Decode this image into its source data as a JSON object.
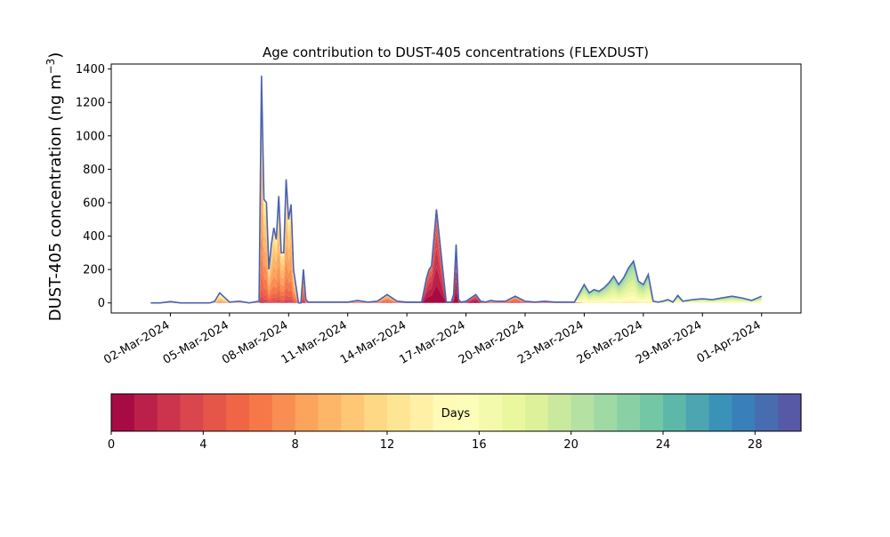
{
  "chart_data": {
    "type": "area",
    "title": "Age contribution to DUST-405 concentrations (FLEXDUST)",
    "ylabel_main": "DUST-405 concentration (ng m",
    "ylabel_sup": "−3",
    "ylabel_tail": ")",
    "xlabel": "",
    "ylim": [
      -60,
      1430
    ],
    "yticks": [
      0,
      200,
      400,
      600,
      800,
      1000,
      1200,
      1400
    ],
    "x_date_range": [
      "2024-02-28",
      "2024-04-03"
    ],
    "xticks": [
      "02-Mar-2024",
      "05-Mar-2024",
      "08-Mar-2024",
      "11-Mar-2024",
      "14-Mar-2024",
      "17-Mar-2024",
      "20-Mar-2024",
      "23-Mar-2024",
      "26-Mar-2024",
      "29-Mar-2024",
      "01-Apr-2024"
    ],
    "series_layers": 30,
    "colormap": "Spectral",
    "total": {
      "t": [
        "2024-03-01T00",
        "2024-03-01T12",
        "2024-03-02T00",
        "2024-03-02T12",
        "2024-03-03T00",
        "2024-03-03T12",
        "2024-03-04T00",
        "2024-03-04T06",
        "2024-03-04T12",
        "2024-03-05T00",
        "2024-03-05T12",
        "2024-03-06T00",
        "2024-03-06T12",
        "2024-03-06T15",
        "2024-03-06T18",
        "2024-03-06T21",
        "2024-03-07T00",
        "2024-03-07T03",
        "2024-03-07T06",
        "2024-03-07T09",
        "2024-03-07T12",
        "2024-03-07T15",
        "2024-03-07T18",
        "2024-03-07T21",
        "2024-03-08T00",
        "2024-03-08T03",
        "2024-03-08T06",
        "2024-03-08T09",
        "2024-03-08T12",
        "2024-03-08T15",
        "2024-03-08T18",
        "2024-03-08T21",
        "2024-03-09T00",
        "2024-03-09T06",
        "2024-03-09T12",
        "2024-03-10T00",
        "2024-03-11T00",
        "2024-03-11T12",
        "2024-03-12T00",
        "2024-03-12T12",
        "2024-03-13T00",
        "2024-03-13T12",
        "2024-03-14T00",
        "2024-03-14T06",
        "2024-03-14T12",
        "2024-03-14T18",
        "2024-03-15T00",
        "2024-03-15T03",
        "2024-03-15T06",
        "2024-03-15T12",
        "2024-03-15T18",
        "2024-03-16T00",
        "2024-03-16T06",
        "2024-03-16T09",
        "2024-03-16T12",
        "2024-03-16T15",
        "2024-03-16T18",
        "2024-03-17T00",
        "2024-03-17T12",
        "2024-03-17T18",
        "2024-03-18T00",
        "2024-03-18T06",
        "2024-03-18T12",
        "2024-03-19T00",
        "2024-03-19T12",
        "2024-03-20T00",
        "2024-03-20T12",
        "2024-03-21T00",
        "2024-03-21T12",
        "2024-03-22T00",
        "2024-03-22T12",
        "2024-03-23T00",
        "2024-03-23T06",
        "2024-03-23T12",
        "2024-03-23T18",
        "2024-03-24T00",
        "2024-03-24T06",
        "2024-03-24T12",
        "2024-03-24T18",
        "2024-03-25T00",
        "2024-03-25T06",
        "2024-03-25T12",
        "2024-03-25T18",
        "2024-03-26T00",
        "2024-03-26T06",
        "2024-03-26T12",
        "2024-03-26T18",
        "2024-03-27T00",
        "2024-03-27T06",
        "2024-03-27T12",
        "2024-03-27T18",
        "2024-03-28T00",
        "2024-03-28T12",
        "2024-03-29T00",
        "2024-03-29T12",
        "2024-03-30T00",
        "2024-03-30T12",
        "2024-03-31T00",
        "2024-03-31T12",
        "2024-04-01T00"
      ],
      "values": [
        0,
        0,
        8,
        0,
        0,
        0,
        0,
        10,
        60,
        5,
        10,
        0,
        10,
        1360,
        620,
        600,
        200,
        350,
        450,
        380,
        640,
        300,
        300,
        740,
        500,
        590,
        200,
        100,
        0,
        0,
        200,
        20,
        5,
        5,
        5,
        5,
        5,
        15,
        5,
        10,
        50,
        10,
        5,
        5,
        5,
        5,
        150,
        200,
        220,
        560,
        280,
        5,
        5,
        50,
        350,
        20,
        5,
        10,
        50,
        10,
        5,
        15,
        10,
        10,
        40,
        10,
        5,
        10,
        5,
        5,
        5,
        110,
        60,
        80,
        70,
        90,
        120,
        160,
        110,
        150,
        210,
        250,
        130,
        110,
        170,
        10,
        5,
        10,
        20,
        5,
        45,
        10,
        20,
        25,
        20,
        30,
        40,
        30,
        15,
        40
      ]
    },
    "colorbar": {
      "label": "Days",
      "range": [
        0,
        30
      ],
      "ticks": [
        "0",
        "4",
        "8",
        "12",
        "16",
        "20",
        "24",
        "28"
      ]
    }
  }
}
